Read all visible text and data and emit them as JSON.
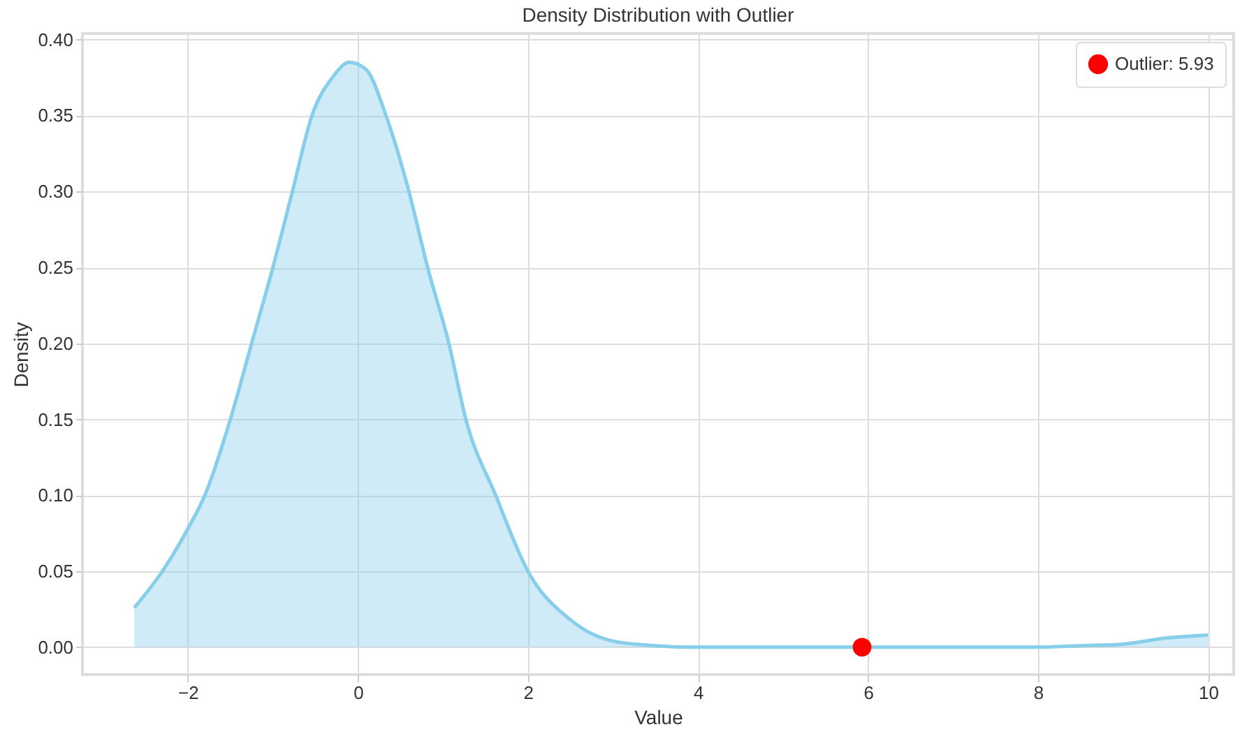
{
  "chart_data": {
    "type": "area",
    "title": "Density Distribution with Outlier",
    "xlabel": "Value",
    "ylabel": "Density",
    "xlim": [
      -3.24,
      10.3
    ],
    "ylim": [
      -0.018,
      0.404
    ],
    "xticks": [
      {
        "value": -2,
        "label": "−2"
      },
      0,
      2,
      4,
      6,
      8,
      10
    ],
    "yticks": [
      {
        "value": 0,
        "label": "0.00"
      },
      {
        "value": 0.05,
        "label": "0.05"
      },
      {
        "value": 0.1,
        "label": "0.10"
      },
      {
        "value": 0.15,
        "label": "0.15"
      },
      {
        "value": 0.2,
        "label": "0.20"
      },
      {
        "value": 0.25,
        "label": "0.25"
      },
      {
        "value": 0.3,
        "label": "0.30"
      },
      {
        "value": 0.35,
        "label": "0.35"
      },
      {
        "value": 0.4,
        "label": "0.40"
      }
    ],
    "grid": true,
    "legend": "top right",
    "series": [
      {
        "color": "#87ceeb",
        "x": [
          -2.63,
          -2.3,
          -2,
          -1.8,
          -1.5,
          -1.25,
          -1,
          -0.77,
          -0.54,
          -0.3,
          -0.1,
          0.1,
          0.33,
          0.6,
          0.82,
          1.07,
          1.27,
          1.62,
          2,
          2.5,
          3,
          3.5,
          4,
          5,
          6,
          7,
          8,
          8.5,
          9,
          9.5,
          10
        ],
        "values": [
          0.026,
          0.05,
          0.078,
          0.1,
          0.15,
          0.2,
          0.25,
          0.3,
          0.35,
          0.375,
          0.385,
          0.38,
          0.35,
          0.3,
          0.25,
          0.2,
          0.15,
          0.1,
          0.05,
          0.018,
          0.004,
          0.001,
          0,
          0,
          0,
          0,
          0,
          0.001,
          0.002,
          0.006,
          0.008
        ]
      },
      {
        "type": "scatter",
        "name": "Outlier: 5.93",
        "color": "#ff0000",
        "marker": "circle",
        "x": [
          5.93
        ],
        "values": [
          0
        ]
      }
    ]
  }
}
